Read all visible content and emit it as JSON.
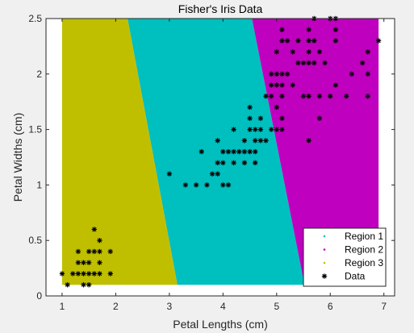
{
  "chart_data": {
    "type": "scatter",
    "title": "Fisher's Iris Data",
    "xlabel": "Petal Lengths (cm)",
    "ylabel": "Petal Widths (cm)",
    "xlim": [
      0.7,
      7.2
    ],
    "ylim": [
      0,
      2.5
    ],
    "xticks": [
      1,
      2,
      3,
      4,
      5,
      6,
      7
    ],
    "yticks": [
      0,
      0.5,
      1,
      1.5,
      2,
      2.5
    ],
    "yticklabels": [
      "0",
      "0.5",
      "1",
      "1.5",
      "2",
      "2.5"
    ],
    "grid": false,
    "legend_location": "bottom-right",
    "regions": [
      {
        "name": "Region 1",
        "color": "#00bfbf",
        "polygon": [
          [
            2.22,
            2.5
          ],
          [
            4.54,
            2.5
          ],
          [
            5.52,
            0.1
          ],
          [
            3.15,
            0.1
          ]
        ]
      },
      {
        "name": "Region 2",
        "color": "#bf00bf",
        "polygon": [
          [
            4.54,
            2.5
          ],
          [
            6.9,
            2.5
          ],
          [
            6.9,
            0.1
          ],
          [
            5.52,
            0.1
          ]
        ]
      },
      {
        "name": "Region 3",
        "color": "#bfbf00",
        "polygon": [
          [
            1.0,
            2.5
          ],
          [
            2.22,
            2.5
          ],
          [
            3.15,
            0.1
          ],
          [
            1.0,
            0.1
          ]
        ]
      }
    ],
    "series": [
      {
        "name": "Data",
        "marker": "asterisk",
        "color": "#000000",
        "points": [
          [
            1.0,
            0.2
          ],
          [
            1.1,
            0.1
          ],
          [
            1.2,
            0.2
          ],
          [
            1.3,
            0.2
          ],
          [
            1.4,
            0.2
          ],
          [
            1.5,
            0.2
          ],
          [
            1.6,
            0.2
          ],
          [
            1.7,
            0.2
          ],
          [
            1.9,
            0.2
          ],
          [
            1.3,
            0.3
          ],
          [
            1.4,
            0.3
          ],
          [
            1.5,
            0.3
          ],
          [
            1.7,
            0.3
          ],
          [
            1.3,
            0.4
          ],
          [
            1.5,
            0.4
          ],
          [
            1.6,
            0.4
          ],
          [
            1.7,
            0.4
          ],
          [
            1.9,
            0.4
          ],
          [
            1.4,
            0.1
          ],
          [
            1.5,
            0.1
          ],
          [
            1.7,
            0.5
          ],
          [
            1.6,
            0.6
          ],
          [
            3.0,
            1.1
          ],
          [
            3.3,
            1.0
          ],
          [
            3.5,
            1.0
          ],
          [
            3.7,
            1.0
          ],
          [
            4.0,
            1.0
          ],
          [
            4.1,
            1.0
          ],
          [
            3.8,
            1.1
          ],
          [
            3.9,
            1.1
          ],
          [
            3.9,
            1.2
          ],
          [
            4.0,
            1.2
          ],
          [
            4.2,
            1.2
          ],
          [
            4.4,
            1.2
          ],
          [
            4.6,
            1.2
          ],
          [
            3.6,
            1.3
          ],
          [
            4.0,
            1.3
          ],
          [
            4.1,
            1.3
          ],
          [
            4.2,
            1.3
          ],
          [
            4.3,
            1.3
          ],
          [
            4.4,
            1.3
          ],
          [
            4.5,
            1.3
          ],
          [
            4.6,
            1.3
          ],
          [
            3.9,
            1.4
          ],
          [
            4.4,
            1.4
          ],
          [
            4.6,
            1.4
          ],
          [
            4.7,
            1.4
          ],
          [
            4.8,
            1.4
          ],
          [
            4.2,
            1.5
          ],
          [
            4.5,
            1.5
          ],
          [
            4.6,
            1.5
          ],
          [
            4.7,
            1.5
          ],
          [
            4.9,
            1.5
          ],
          [
            5.0,
            1.5
          ],
          [
            5.1,
            1.5
          ],
          [
            4.5,
            1.6
          ],
          [
            4.7,
            1.6
          ],
          [
            5.1,
            1.6
          ],
          [
            4.5,
            1.7
          ],
          [
            5.0,
            1.7
          ],
          [
            4.8,
            1.8
          ],
          [
            4.9,
            1.8
          ],
          [
            5.1,
            1.8
          ],
          [
            5.5,
            1.8
          ],
          [
            5.6,
            1.8
          ],
          [
            5.8,
            1.8
          ],
          [
            6.0,
            1.8
          ],
          [
            6.3,
            1.8
          ],
          [
            4.9,
            1.9
          ],
          [
            5.0,
            1.9
          ],
          [
            5.1,
            1.9
          ],
          [
            5.3,
            1.9
          ],
          [
            6.1,
            1.9
          ],
          [
            4.9,
            2.0
          ],
          [
            5.0,
            2.0
          ],
          [
            5.1,
            2.0
          ],
          [
            5.2,
            2.0
          ],
          [
            6.4,
            2.0
          ],
          [
            6.7,
            2.0
          ],
          [
            5.4,
            2.1
          ],
          [
            5.5,
            2.1
          ],
          [
            5.6,
            2.1
          ],
          [
            5.7,
            2.1
          ],
          [
            5.9,
            2.1
          ],
          [
            6.6,
            2.1
          ],
          [
            5.0,
            2.2
          ],
          [
            5.3,
            2.2
          ],
          [
            5.6,
            2.2
          ],
          [
            5.8,
            2.2
          ],
          [
            6.7,
            2.2
          ],
          [
            5.1,
            2.3
          ],
          [
            5.2,
            2.3
          ],
          [
            5.4,
            2.3
          ],
          [
            5.6,
            2.3
          ],
          [
            5.7,
            2.3
          ],
          [
            6.1,
            2.3
          ],
          [
            6.9,
            2.3
          ],
          [
            5.1,
            2.4
          ],
          [
            5.6,
            2.4
          ],
          [
            6.1,
            2.4
          ],
          [
            5.7,
            2.5
          ],
          [
            6.0,
            2.5
          ],
          [
            6.1,
            2.5
          ],
          [
            5.6,
            1.4
          ],
          [
            5.8,
            1.6
          ],
          [
            6.7,
            1.8
          ]
        ]
      }
    ],
    "legend": [
      "Region 1",
      "Region 2",
      "Region 3",
      "Data"
    ]
  }
}
